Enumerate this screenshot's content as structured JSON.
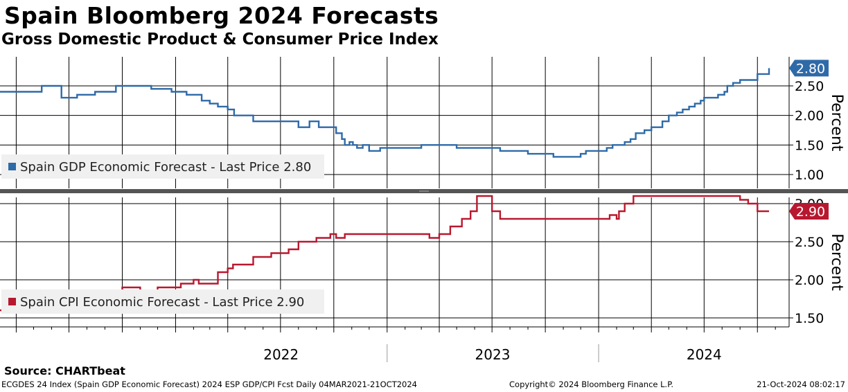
{
  "header": {
    "title": "Spain Bloomberg 2024 Forecasts",
    "subtitle": "Gross Domestic Product & Consumer Price Index"
  },
  "chart_data": [
    {
      "type": "line",
      "panel": "top",
      "ylabel": "Percent",
      "ylim": [
        0.85,
        3.0
      ],
      "yticks": [
        "1.00",
        "1.50",
        "2.00",
        "2.50"
      ],
      "grid": true,
      "legend_position": "bottom-left",
      "color": "#2e6aa8",
      "series": [
        {
          "name": "Spain GDP Economic Forecast - Last Price 2.80",
          "last_value": "2.80",
          "x": [
            "2021-03-04",
            "2021-05-10",
            "2021-05-15",
            "2021-06-15",
            "2021-06-18",
            "2021-07-12",
            "2021-07-15",
            "2021-08-10",
            "2021-08-15",
            "2021-09-01",
            "2021-09-20",
            "2021-10-15",
            "2021-11-01",
            "2021-11-20",
            "2021-12-10",
            "2021-12-25",
            "2022-01-10",
            "2022-01-20",
            "2022-02-15",
            "2022-03-01",
            "2022-03-15",
            "2022-04-01",
            "2022-04-12",
            "2022-05-01",
            "2022-05-15",
            "2022-06-20",
            "2022-07-01",
            "2022-07-15",
            "2022-08-01",
            "2022-08-20",
            "2022-09-05",
            "2022-09-25",
            "2022-10-05",
            "2022-10-15",
            "2022-10-20",
            "2022-10-28",
            "2022-11-03",
            "2022-11-10",
            "2022-11-20",
            "2022-12-01",
            "2022-12-20",
            "2023-01-10",
            "2023-03-01",
            "2023-04-20",
            "2023-05-01",
            "2023-05-15",
            "2023-07-01",
            "2023-07-15",
            "2023-08-20",
            "2023-09-01",
            "2023-09-15",
            "2023-10-15",
            "2023-11-01",
            "2023-11-20",
            "2023-12-01",
            "2023-12-10",
            "2024-01-01",
            "2024-01-15",
            "2024-01-25",
            "2024-02-05",
            "2024-02-15",
            "2024-02-25",
            "2024-03-05",
            "2024-03-20",
            "2024-04-01",
            "2024-04-20",
            "2024-05-01",
            "2024-05-15",
            "2024-05-25",
            "2024-06-05",
            "2024-06-15",
            "2024-06-25",
            "2024-07-01",
            "2024-07-25",
            "2024-08-05",
            "2024-08-10",
            "2024-08-20",
            "2024-09-01",
            "2024-09-25",
            "2024-10-01",
            "2024-10-10",
            "2024-10-21"
          ],
          "values": [
            2.4,
            2.4,
            2.5,
            2.5,
            2.3,
            2.3,
            2.35,
            2.35,
            2.4,
            2.4,
            2.5,
            2.5,
            2.5,
            2.45,
            2.45,
            2.4,
            2.4,
            2.35,
            2.25,
            2.2,
            2.15,
            2.1,
            2.0,
            2.0,
            1.9,
            1.9,
            1.9,
            1.9,
            1.8,
            1.9,
            1.8,
            1.8,
            1.7,
            1.6,
            1.5,
            1.55,
            1.5,
            1.45,
            1.5,
            1.4,
            1.45,
            1.45,
            1.5,
            1.5,
            1.45,
            1.45,
            1.45,
            1.4,
            1.4,
            1.35,
            1.35,
            1.3,
            1.3,
            1.3,
            1.35,
            1.4,
            1.4,
            1.45,
            1.5,
            1.5,
            1.55,
            1.6,
            1.7,
            1.75,
            1.8,
            1.9,
            2.0,
            2.05,
            2.1,
            2.15,
            2.2,
            2.25,
            2.3,
            2.35,
            2.4,
            2.5,
            2.55,
            2.6,
            2.6,
            2.7,
            2.7,
            2.8
          ]
        }
      ]
    },
    {
      "type": "line",
      "panel": "bottom",
      "ylabel": "Percent",
      "ylim": [
        1.25,
        3.25
      ],
      "yticks": [
        "1.50",
        "2.00",
        "2.50",
        "3.00"
      ],
      "grid": true,
      "legend_position": "bottom-left",
      "color": "#b8182f",
      "series": [
        {
          "name": "Spain CPI Economic Forecast - Last Price 2.90",
          "last_value": "2.90",
          "x": [
            "2021-03-04",
            "2021-04-10",
            "2021-05-01",
            "2021-06-20",
            "2021-08-01",
            "2021-08-20",
            "2021-10-01",
            "2021-11-01",
            "2021-12-01",
            "2022-01-10",
            "2022-02-01",
            "2022-02-10",
            "2022-03-15",
            "2022-04-01",
            "2022-04-10",
            "2022-05-01",
            "2022-05-15",
            "2022-06-15",
            "2022-07-01",
            "2022-07-15",
            "2022-08-01",
            "2022-08-20",
            "2022-09-01",
            "2022-09-25",
            "2022-10-05",
            "2022-10-20",
            "2022-11-01",
            "2023-02-01",
            "2023-03-15",
            "2023-04-01",
            "2023-04-20",
            "2023-05-10",
            "2023-05-25",
            "2023-06-05",
            "2023-06-20",
            "2023-07-01",
            "2023-07-15",
            "2023-08-01",
            "2023-09-01",
            "2023-09-15",
            "2023-10-01",
            "2023-10-15",
            "2023-11-01",
            "2023-11-20",
            "2023-12-20",
            "2024-01-01",
            "2024-01-10",
            "2024-01-20",
            "2024-02-01",
            "2024-02-05",
            "2024-02-15",
            "2024-02-25",
            "2024-03-01",
            "2024-03-15",
            "2024-04-15",
            "2024-05-01",
            "2024-05-15",
            "2024-06-01",
            "2024-06-15",
            "2024-07-01",
            "2024-07-15",
            "2024-08-01",
            "2024-08-15",
            "2024-09-01",
            "2024-09-15",
            "2024-10-01",
            "2024-10-21"
          ],
          "values": [
            1.6,
            1.6,
            1.65,
            1.6,
            1.7,
            1.8,
            1.9,
            1.85,
            1.9,
            1.95,
            2.0,
            1.95,
            2.1,
            2.15,
            2.2,
            2.2,
            2.3,
            2.35,
            2.35,
            2.4,
            2.5,
            2.5,
            2.55,
            2.6,
            2.55,
            2.6,
            2.6,
            2.6,
            2.55,
            2.6,
            2.7,
            2.8,
            2.9,
            3.1,
            3.1,
            2.9,
            2.8,
            2.8,
            2.8,
            2.8,
            2.8,
            2.8,
            2.8,
            2.8,
            2.8,
            2.8,
            2.8,
            2.85,
            2.8,
            2.9,
            3.0,
            3.0,
            3.1,
            3.1,
            3.1,
            3.1,
            3.1,
            3.1,
            3.1,
            3.1,
            3.1,
            3.1,
            3.1,
            3.05,
            3.0,
            2.9,
            2.9
          ]
        }
      ]
    }
  ],
  "xaxis": {
    "year_labels": [
      "2022",
      "2023",
      "2024"
    ],
    "year_dates": [
      "2022-07-02",
      "2023-07-02",
      "2024-07-01"
    ],
    "year_boundaries": [
      "2023-01-01",
      "2024-01-01"
    ],
    "start": "2021-03-04",
    "end": "2024-10-21"
  },
  "source": "Source: CHARTbeat",
  "footer": {
    "left": "ECGDES 24 Index (Spain GDP Economic Forecast) 2024 ESP GDP/CPI Fcst  Daily 04MAR2021-21OCT2024",
    "center": "Copyright© 2024 Bloomberg Finance L.P.",
    "right": "21-Oct-2024 08:02:17"
  }
}
